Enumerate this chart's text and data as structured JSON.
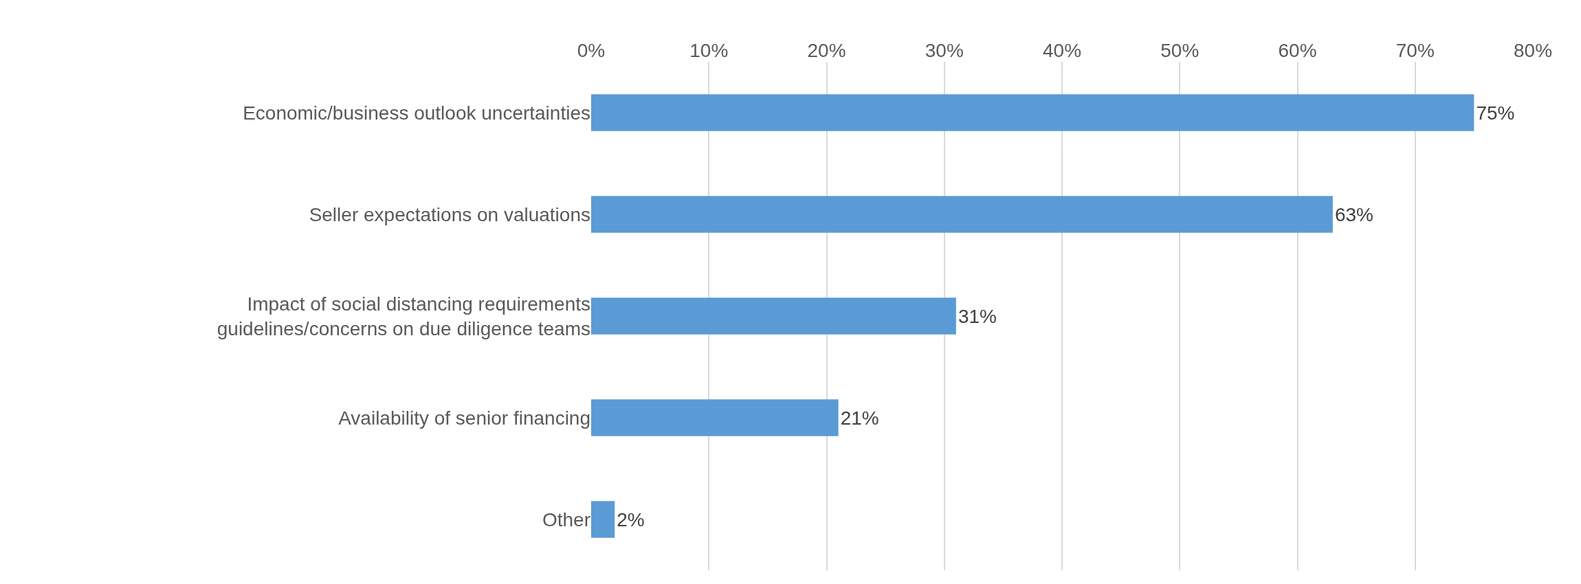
{
  "chart_data": {
    "type": "bar",
    "orientation": "horizontal",
    "categories": [
      "Economic/business outlook uncertainties",
      "Seller expectations on valuations",
      "Impact of social distancing requirements\nguidelines/concerns on due diligence teams",
      "Availability of senior financing",
      "Other"
    ],
    "values": [
      75,
      63,
      31,
      21,
      2
    ],
    "value_labels": [
      "75%",
      "63%",
      "31%",
      "21%",
      "2%"
    ],
    "color": "#5b9bd5",
    "xlim": [
      0,
      80
    ],
    "xticks": [
      {
        "value": 0,
        "label": "0%"
      },
      {
        "value": 10,
        "label": "10%"
      },
      {
        "value": 20,
        "label": "20%"
      },
      {
        "value": 30,
        "label": "30%"
      },
      {
        "value": 40,
        "label": "40%"
      },
      {
        "value": 50,
        "label": "50%"
      },
      {
        "value": 60,
        "label": "60%"
      },
      {
        "value": 70,
        "label": "70%"
      },
      {
        "value": 80,
        "label": "80%"
      }
    ],
    "grid": "x",
    "legend": false
  }
}
